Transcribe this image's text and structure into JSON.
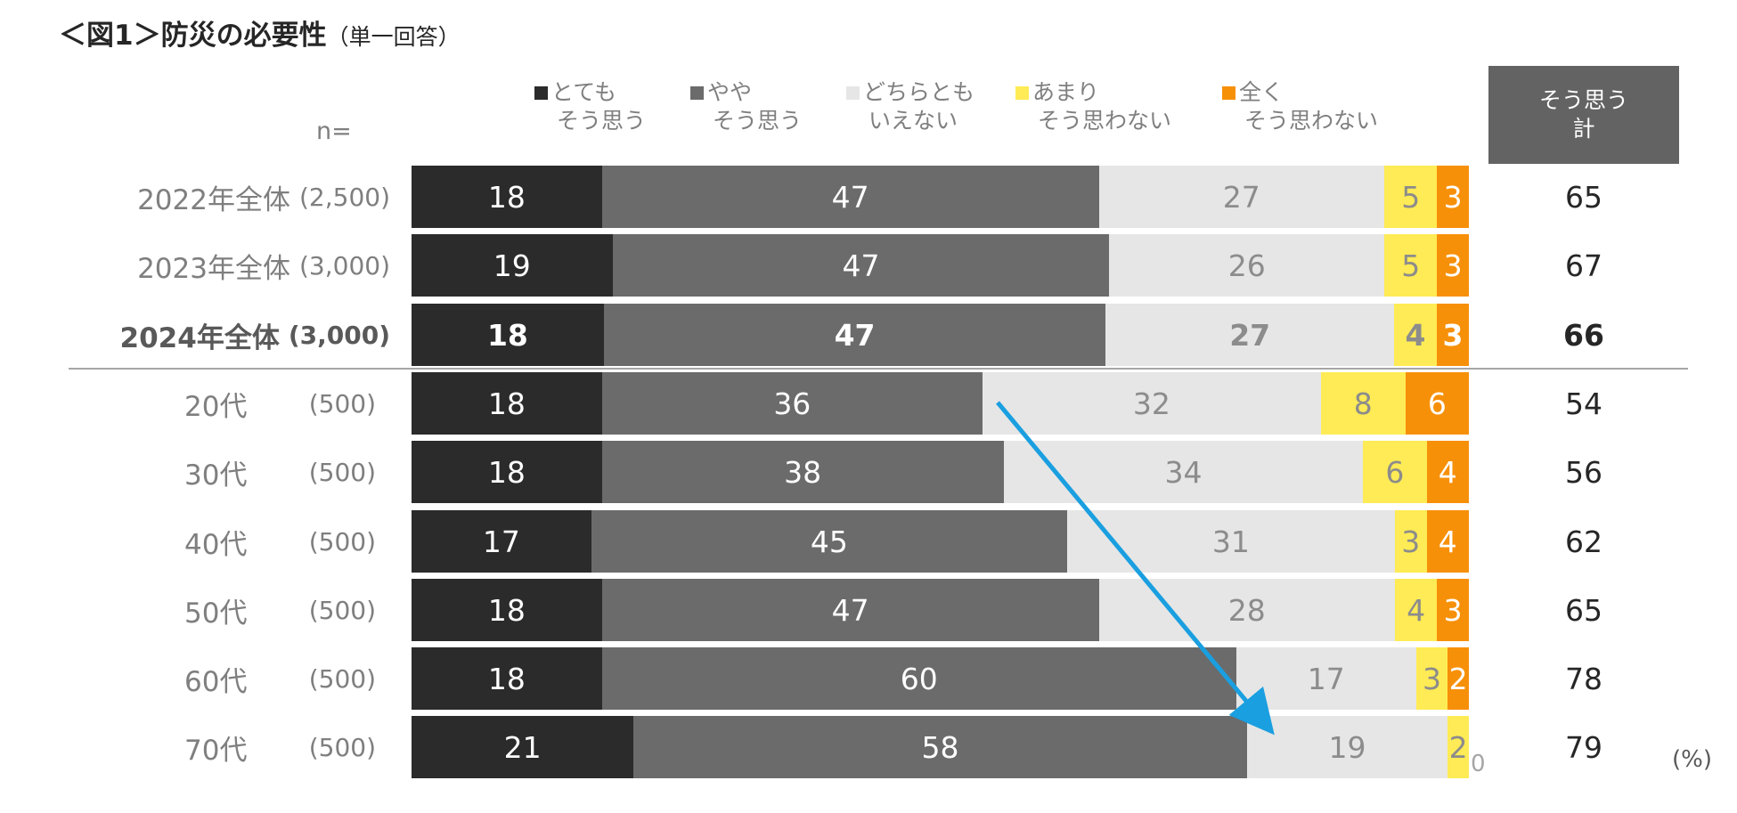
{
  "title": "＜図1＞防災の必要性",
  "subtitle": "（単一回答）",
  "n_label": "n=",
  "unit": "(%)",
  "total_header": [
    "そう思う",
    "計"
  ],
  "zero_label": "0",
  "chart_data": {
    "type": "bar",
    "orientation": "horizontal",
    "stacked": true,
    "percent": true,
    "categories": [
      "2022年全体",
      "2023年全体",
      "2024年全体",
      "20代",
      "30代",
      "40代",
      "50代",
      "60代",
      "70代"
    ],
    "n": [
      "(2,500)",
      "(3,000)",
      "(3,000)",
      "(500)",
      "(500)",
      "(500)",
      "(500)",
      "(500)",
      "(500)"
    ],
    "highlight_row": 2,
    "series": [
      {
        "name": "とても\nそう思う",
        "color": "#2b2b2b",
        "text_color": "#ffffff",
        "values": [
          18,
          19,
          18,
          18,
          18,
          17,
          18,
          18,
          21
        ]
      },
      {
        "name": "やや\nそう思う",
        "color": "#6b6b6b",
        "text_color": "#ffffff",
        "values": [
          47,
          47,
          47,
          36,
          38,
          45,
          47,
          60,
          58
        ]
      },
      {
        "name": "どちらとも\nいえない",
        "color": "#e6e6e6",
        "text_color": "#8c8c8c",
        "values": [
          27,
          26,
          27,
          32,
          34,
          31,
          28,
          17,
          19
        ]
      },
      {
        "name": "あまり\nそう思わない",
        "color": "#ffeb55",
        "text_color": "#8c8c8c",
        "values": [
          5,
          5,
          4,
          8,
          6,
          3,
          4,
          3,
          2
        ]
      },
      {
        "name": "全く\nそう思わない",
        "color": "#f79009",
        "text_color": "#ffffff",
        "values": [
          3,
          3,
          3,
          6,
          4,
          4,
          3,
          2,
          0
        ]
      }
    ],
    "totals": {
      "name": "そう思う計",
      "values": [
        65,
        67,
        66,
        54,
        56,
        62,
        65,
        78,
        79
      ]
    },
    "arrow_color": "#1a9fe0"
  }
}
